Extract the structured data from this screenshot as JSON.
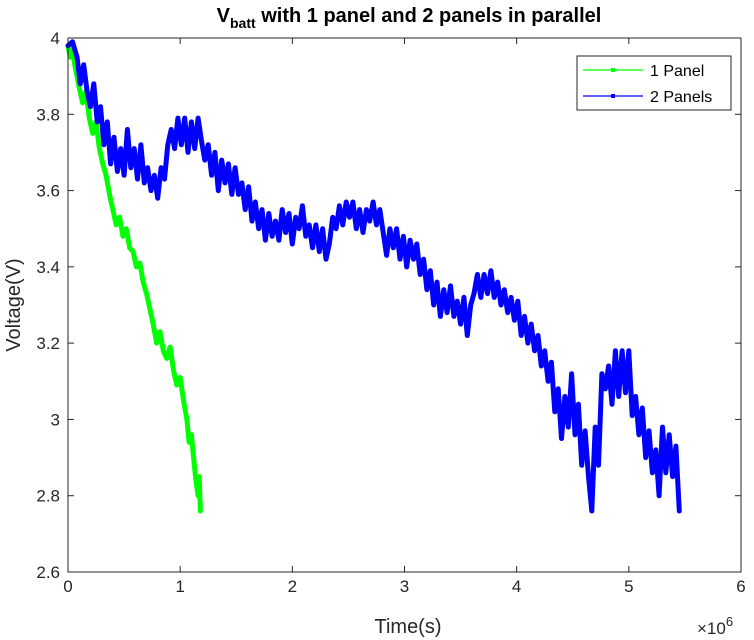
{
  "chart_data": {
    "type": "line",
    "title": {
      "main": "V",
      "subscript": "batt",
      "rest": " with 1 panel and 2 panels in parallel"
    },
    "xlabel": "Time(s)",
    "ylabel": "Voltage(V)",
    "x_exponent_label": {
      "base": "×10",
      "exp": "6"
    },
    "xlim": [
      0,
      6
    ],
    "ylim": [
      2.6,
      4.0
    ],
    "xticks": [
      0,
      1,
      2,
      3,
      4,
      5,
      6
    ],
    "xtick_labels": [
      "0",
      "1",
      "2",
      "3",
      "4",
      "5",
      "6"
    ],
    "yticks": [
      2.6,
      2.8,
      3.0,
      3.2,
      3.4,
      3.6,
      3.8,
      4.0
    ],
    "ytick_labels": [
      "2.6",
      "2.8",
      "3",
      "3.2",
      "3.4",
      "3.6",
      "3.8",
      "4"
    ],
    "grid": false,
    "legend_position": "top-right",
    "series": [
      {
        "name": "1 Panel",
        "color": "#00ff00",
        "points": [
          [
            0.0,
            3.98
          ],
          [
            0.02,
            3.95
          ],
          [
            0.04,
            3.97
          ],
          [
            0.06,
            3.93
          ],
          [
            0.08,
            3.9
          ],
          [
            0.1,
            3.87
          ],
          [
            0.13,
            3.83
          ],
          [
            0.16,
            3.86
          ],
          [
            0.19,
            3.79
          ],
          [
            0.22,
            3.75
          ],
          [
            0.25,
            3.78
          ],
          [
            0.28,
            3.71
          ],
          [
            0.31,
            3.67
          ],
          [
            0.34,
            3.64
          ],
          [
            0.37,
            3.59
          ],
          [
            0.4,
            3.55
          ],
          [
            0.43,
            3.51
          ],
          [
            0.46,
            3.53
          ],
          [
            0.49,
            3.48
          ],
          [
            0.52,
            3.5
          ],
          [
            0.55,
            3.45
          ],
          [
            0.58,
            3.44
          ],
          [
            0.61,
            3.4
          ],
          [
            0.64,
            3.41
          ],
          [
            0.67,
            3.36
          ],
          [
            0.7,
            3.33
          ],
          [
            0.73,
            3.29
          ],
          [
            0.76,
            3.25
          ],
          [
            0.79,
            3.2
          ],
          [
            0.82,
            3.23
          ],
          [
            0.85,
            3.18
          ],
          [
            0.88,
            3.16
          ],
          [
            0.91,
            3.19
          ],
          [
            0.94,
            3.13
          ],
          [
            0.97,
            3.09
          ],
          [
            1.0,
            3.11
          ],
          [
            1.03,
            3.05
          ],
          [
            1.06,
            3.0
          ],
          [
            1.08,
            2.94
          ],
          [
            1.1,
            2.96
          ],
          [
            1.12,
            2.9
          ],
          [
            1.14,
            2.84
          ],
          [
            1.16,
            2.8
          ],
          [
            1.17,
            2.85
          ],
          [
            1.18,
            2.76
          ]
        ]
      },
      {
        "name": "2 Panels",
        "color": "#0000ff",
        "points": [
          [
            0.0,
            3.98
          ],
          [
            0.04,
            3.99
          ],
          [
            0.08,
            3.95
          ],
          [
            0.11,
            3.88
          ],
          [
            0.14,
            3.93
          ],
          [
            0.17,
            3.86
          ],
          [
            0.2,
            3.82
          ],
          [
            0.23,
            3.88
          ],
          [
            0.26,
            3.78
          ],
          [
            0.29,
            3.82
          ],
          [
            0.32,
            3.72
          ],
          [
            0.35,
            3.78
          ],
          [
            0.38,
            3.67
          ],
          [
            0.41,
            3.74
          ],
          [
            0.44,
            3.65
          ],
          [
            0.47,
            3.71
          ],
          [
            0.5,
            3.64
          ],
          [
            0.53,
            3.76
          ],
          [
            0.56,
            3.66
          ],
          [
            0.59,
            3.71
          ],
          [
            0.62,
            3.63
          ],
          [
            0.65,
            3.72
          ],
          [
            0.68,
            3.62
          ],
          [
            0.71,
            3.66
          ],
          [
            0.74,
            3.6
          ],
          [
            0.77,
            3.64
          ],
          [
            0.8,
            3.58
          ],
          [
            0.83,
            3.66
          ],
          [
            0.86,
            3.63
          ],
          [
            0.89,
            3.72
          ],
          [
            0.92,
            3.76
          ],
          [
            0.95,
            3.71
          ],
          [
            0.98,
            3.79
          ],
          [
            1.01,
            3.72
          ],
          [
            1.04,
            3.79
          ],
          [
            1.07,
            3.7
          ],
          [
            1.1,
            3.78
          ],
          [
            1.13,
            3.71
          ],
          [
            1.16,
            3.79
          ],
          [
            1.19,
            3.73
          ],
          [
            1.22,
            3.68
          ],
          [
            1.25,
            3.72
          ],
          [
            1.28,
            3.64
          ],
          [
            1.31,
            3.7
          ],
          [
            1.34,
            3.6
          ],
          [
            1.37,
            3.68
          ],
          [
            1.4,
            3.62
          ],
          [
            1.43,
            3.67
          ],
          [
            1.46,
            3.59
          ],
          [
            1.49,
            3.66
          ],
          [
            1.52,
            3.59
          ],
          [
            1.55,
            3.62
          ],
          [
            1.58,
            3.55
          ],
          [
            1.61,
            3.61
          ],
          [
            1.64,
            3.52
          ],
          [
            1.67,
            3.57
          ],
          [
            1.7,
            3.5
          ],
          [
            1.73,
            3.55
          ],
          [
            1.76,
            3.47
          ],
          [
            1.79,
            3.54
          ],
          [
            1.82,
            3.48
          ],
          [
            1.85,
            3.52
          ],
          [
            1.88,
            3.47
          ],
          [
            1.91,
            3.55
          ],
          [
            1.94,
            3.49
          ],
          [
            1.97,
            3.54
          ],
          [
            2.0,
            3.46
          ],
          [
            2.03,
            3.53
          ],
          [
            2.06,
            3.5
          ],
          [
            2.09,
            3.56
          ],
          [
            2.12,
            3.48
          ],
          [
            2.15,
            3.51
          ],
          [
            2.18,
            3.45
          ],
          [
            2.21,
            3.51
          ],
          [
            2.24,
            3.44
          ],
          [
            2.27,
            3.5
          ],
          [
            2.3,
            3.42
          ],
          [
            2.33,
            3.46
          ],
          [
            2.36,
            3.53
          ],
          [
            2.39,
            3.5
          ],
          [
            2.42,
            3.56
          ],
          [
            2.45,
            3.51
          ],
          [
            2.48,
            3.57
          ],
          [
            2.51,
            3.53
          ],
          [
            2.54,
            3.57
          ],
          [
            2.57,
            3.5
          ],
          [
            2.6,
            3.55
          ],
          [
            2.63,
            3.49
          ],
          [
            2.66,
            3.55
          ],
          [
            2.69,
            3.52
          ],
          [
            2.72,
            3.57
          ],
          [
            2.75,
            3.51
          ],
          [
            2.78,
            3.55
          ],
          [
            2.81,
            3.49
          ],
          [
            2.84,
            3.43
          ],
          [
            2.87,
            3.5
          ],
          [
            2.9,
            3.45
          ],
          [
            2.93,
            3.5
          ],
          [
            2.96,
            3.42
          ],
          [
            2.99,
            3.48
          ],
          [
            3.02,
            3.4
          ],
          [
            3.05,
            3.47
          ],
          [
            3.08,
            3.42
          ],
          [
            3.11,
            3.46
          ],
          [
            3.14,
            3.38
          ],
          [
            3.17,
            3.42
          ],
          [
            3.2,
            3.34
          ],
          [
            3.23,
            3.39
          ],
          [
            3.26,
            3.3
          ],
          [
            3.29,
            3.36
          ],
          [
            3.32,
            3.27
          ],
          [
            3.35,
            3.34
          ],
          [
            3.38,
            3.28
          ],
          [
            3.41,
            3.35
          ],
          [
            3.44,
            3.27
          ],
          [
            3.47,
            3.31
          ],
          [
            3.5,
            3.25
          ],
          [
            3.53,
            3.32
          ],
          [
            3.56,
            3.22
          ],
          [
            3.59,
            3.3
          ],
          [
            3.62,
            3.33
          ],
          [
            3.65,
            3.38
          ],
          [
            3.68,
            3.32
          ],
          [
            3.71,
            3.38
          ],
          [
            3.74,
            3.33
          ],
          [
            3.77,
            3.39
          ],
          [
            3.8,
            3.32
          ],
          [
            3.83,
            3.36
          ],
          [
            3.86,
            3.3
          ],
          [
            3.89,
            3.34
          ],
          [
            3.92,
            3.28
          ],
          [
            3.95,
            3.32
          ],
          [
            3.98,
            3.26
          ],
          [
            4.01,
            3.31
          ],
          [
            4.04,
            3.22
          ],
          [
            4.07,
            3.27
          ],
          [
            4.1,
            3.2
          ],
          [
            4.13,
            3.25
          ],
          [
            4.16,
            3.18
          ],
          [
            4.19,
            3.22
          ],
          [
            4.22,
            3.14
          ],
          [
            4.25,
            3.18
          ],
          [
            4.28,
            3.1
          ],
          [
            4.31,
            3.15
          ],
          [
            4.34,
            3.02
          ],
          [
            4.37,
            3.08
          ],
          [
            4.4,
            2.95
          ],
          [
            4.43,
            3.06
          ],
          [
            4.46,
            2.98
          ],
          [
            4.49,
            3.12
          ],
          [
            4.52,
            2.96
          ],
          [
            4.55,
            3.04
          ],
          [
            4.58,
            2.88
          ],
          [
            4.61,
            2.97
          ],
          [
            4.64,
            2.85
          ],
          [
            4.67,
            2.76
          ],
          [
            4.7,
            2.98
          ],
          [
            4.73,
            2.88
          ],
          [
            4.76,
            3.12
          ],
          [
            4.79,
            3.08
          ],
          [
            4.82,
            3.14
          ],
          [
            4.85,
            3.04
          ],
          [
            4.88,
            3.18
          ],
          [
            4.91,
            3.06
          ],
          [
            4.94,
            3.18
          ],
          [
            4.97,
            3.07
          ],
          [
            5.0,
            3.18
          ],
          [
            5.03,
            3.01
          ],
          [
            5.06,
            3.06
          ],
          [
            5.09,
            2.96
          ],
          [
            5.12,
            3.03
          ],
          [
            5.15,
            2.9
          ],
          [
            5.18,
            2.97
          ],
          [
            5.21,
            2.86
          ],
          [
            5.24,
            2.92
          ],
          [
            5.27,
            2.8
          ],
          [
            5.3,
            2.98
          ],
          [
            5.33,
            2.86
          ],
          [
            5.36,
            2.96
          ],
          [
            5.39,
            2.85
          ],
          [
            5.42,
            2.93
          ],
          [
            5.45,
            2.76
          ]
        ]
      }
    ]
  }
}
